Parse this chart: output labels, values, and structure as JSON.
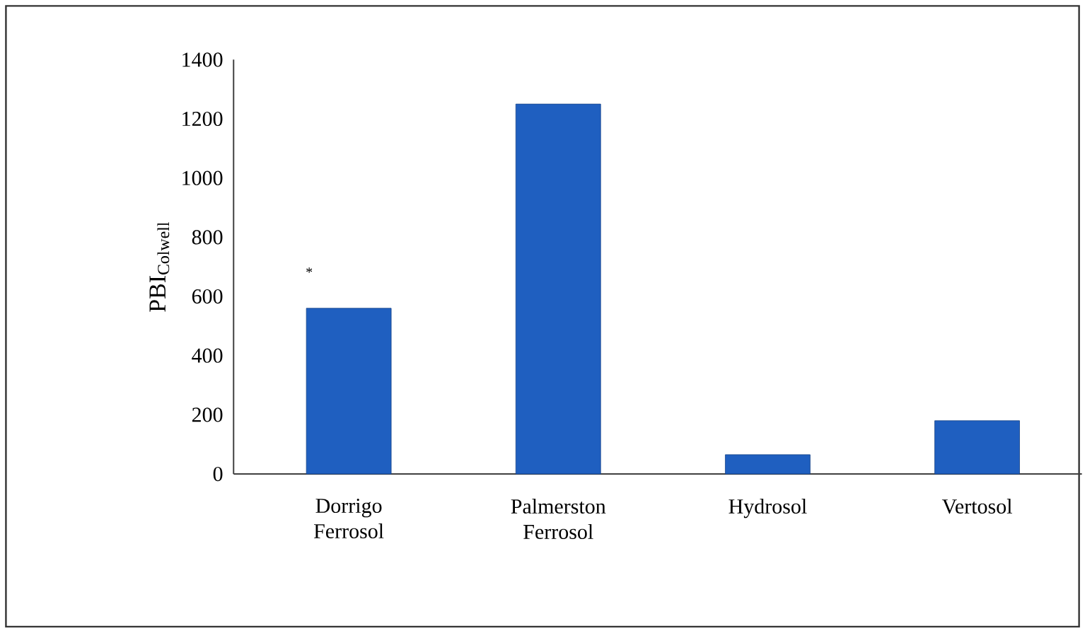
{
  "chart_data": {
    "type": "bar",
    "ylabel": "PBI$_{Colwell}$",
    "categories": [
      "Dorrigo Ferrosol",
      "Palmerston Ferrosol",
      "Hydrosol",
      "Vertosol"
    ],
    "values": [
      560,
      1250,
      65,
      180
    ],
    "color": "#1f5fc0",
    "ylim": [
      0,
      1400
    ],
    "yticks": [
      0,
      200,
      400,
      600,
      800,
      1000,
      1200,
      1400
    ],
    "annotations": [
      "*"
    ],
    "grid": false
  }
}
